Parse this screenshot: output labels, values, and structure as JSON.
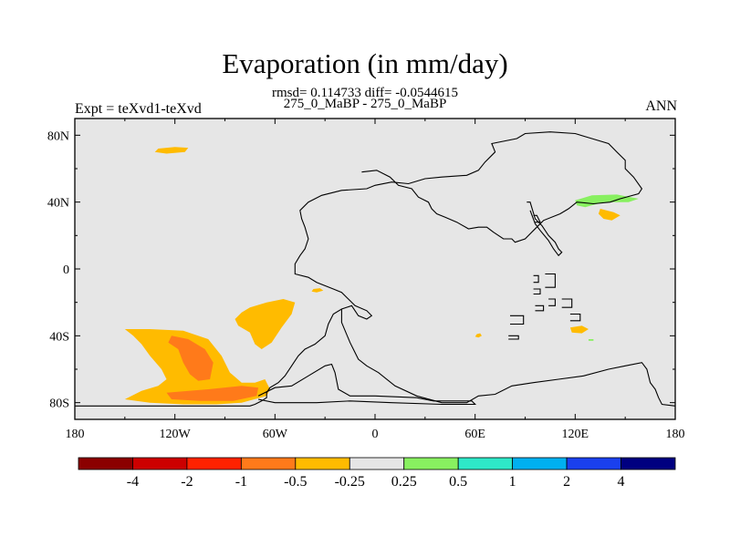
{
  "chart_data": {
    "type": "heatmap",
    "title": "Evaporation (in mm/day)",
    "subtitle": "rmsd= 0.114733 diff= -0.0544615",
    "center_label": "275_0_MaBP - 275_0_MaBP",
    "left_label": "Expt = teXvd1-teXvd",
    "right_label": "ANN",
    "xlim": [
      -180,
      180
    ],
    "ylim": [
      -90,
      90
    ],
    "x_ticks": [
      {
        "value": -180,
        "label": "180"
      },
      {
        "value": -120,
        "label": "120W"
      },
      {
        "value": -60,
        "label": "60W"
      },
      {
        "value": 0,
        "label": "0"
      },
      {
        "value": 60,
        "label": "60E"
      },
      {
        "value": 120,
        "label": "120E"
      },
      {
        "value": 180,
        "label": "180"
      }
    ],
    "y_ticks": [
      {
        "value": 80,
        "label": "80N"
      },
      {
        "value": 40,
        "label": "40N"
      },
      {
        "value": 0,
        "label": "0"
      },
      {
        "value": -40,
        "label": "40S"
      },
      {
        "value": -80,
        "label": "80S"
      }
    ],
    "colorbar": {
      "colors": [
        "#8b0000",
        "#cc0000",
        "#ff2200",
        "#ff7a1a",
        "#ffbb00",
        "#e6e6e6",
        "#88f060",
        "#2ee8c8",
        "#00b0f0",
        "#1a40ee",
        "#000080"
      ],
      "labels": [
        "-4",
        "-2",
        "-1",
        "-0.5",
        "-0.25",
        "0.25",
        "0.5",
        "1",
        "2",
        "4"
      ]
    },
    "field_color": "#e6e6e6",
    "regions": [
      {
        "level": "-0.5",
        "color": "#ffbb00",
        "points": [
          [
            -130,
            72
          ],
          [
            -120,
            73
          ],
          [
            -112,
            72.5
          ],
          [
            -114,
            70
          ],
          [
            -125,
            69
          ],
          [
            -132,
            70
          ]
        ]
      },
      {
        "level": "-0.5",
        "color": "#ffbb00",
        "points": [
          [
            -150,
            -36
          ],
          [
            -135,
            -36
          ],
          [
            -115,
            -37
          ],
          [
            -100,
            -42
          ],
          [
            -92,
            -52
          ],
          [
            -87,
            -62
          ],
          [
            -80,
            -68
          ],
          [
            -72,
            -68
          ],
          [
            -66,
            -66
          ],
          [
            -63,
            -72
          ],
          [
            -65,
            -76
          ],
          [
            -80,
            -80
          ],
          [
            -95,
            -81
          ],
          [
            -115,
            -81
          ],
          [
            -135,
            -80
          ],
          [
            -150,
            -78
          ],
          [
            -140,
            -73
          ],
          [
            -130,
            -70
          ],
          [
            -125,
            -66
          ],
          [
            -128,
            -60
          ],
          [
            -135,
            -52
          ],
          [
            -140,
            -45
          ],
          [
            -145,
            -40
          ]
        ]
      },
      {
        "level": "-0.5",
        "color": "#ffbb00",
        "points": [
          [
            -75,
            -23
          ],
          [
            -65,
            -20
          ],
          [
            -55,
            -18
          ],
          [
            -48,
            -20
          ],
          [
            -50,
            -27
          ],
          [
            -56,
            -35
          ],
          [
            -62,
            -44
          ],
          [
            -68,
            -48
          ],
          [
            -72,
            -45
          ],
          [
            -75,
            -38
          ],
          [
            -82,
            -34
          ],
          [
            -84,
            -30
          ],
          [
            -80,
            -26
          ]
        ]
      },
      {
        "level": "-0.5",
        "color": "#ffbb00",
        "points": [
          [
            -37,
            -12
          ],
          [
            -33,
            -11.5
          ],
          [
            -31,
            -13
          ],
          [
            -35,
            -14
          ],
          [
            -38,
            -13.5
          ]
        ]
      },
      {
        "level": "-1",
        "color": "#ff7a1a",
        "points": [
          [
            -122,
            -40
          ],
          [
            -112,
            -42
          ],
          [
            -102,
            -48
          ],
          [
            -97,
            -56
          ],
          [
            -99,
            -66
          ],
          [
            -106,
            -67
          ],
          [
            -111,
            -63
          ],
          [
            -115,
            -56
          ],
          [
            -118,
            -48
          ],
          [
            -124,
            -44
          ]
        ]
      },
      {
        "level": "-1",
        "color": "#ff7a1a",
        "points": [
          [
            -125,
            -74
          ],
          [
            -100,
            -72
          ],
          [
            -80,
            -70
          ],
          [
            -70,
            -71
          ],
          [
            -71,
            -76
          ],
          [
            -85,
            -79
          ],
          [
            -105,
            -79
          ],
          [
            -122,
            -78
          ]
        ]
      },
      {
        "level": "-0.5",
        "color": "#ffbb00",
        "points": [
          [
            61,
            -39
          ],
          [
            63,
            -38.5
          ],
          [
            64,
            -40
          ],
          [
            62,
            -41
          ],
          [
            60,
            -40.5
          ]
        ]
      },
      {
        "level": "-0.5",
        "color": "#ffbb00",
        "points": [
          [
            117,
            -35
          ],
          [
            124,
            -34
          ],
          [
            128,
            -36
          ],
          [
            124,
            -38.5
          ],
          [
            118,
            -38
          ]
        ]
      },
      {
        "level": "0.25",
        "color": "#88f060",
        "points": [
          [
            128,
            -42
          ],
          [
            131,
            -42
          ],
          [
            131,
            -43
          ],
          [
            128,
            -43
          ]
        ]
      },
      {
        "level": "0.25",
        "color": "#88f060",
        "points": [
          [
            120,
            41
          ],
          [
            130,
            44
          ],
          [
            145,
            44.5
          ],
          [
            158,
            42
          ],
          [
            152,
            40
          ],
          [
            137,
            40
          ],
          [
            126,
            37
          ],
          [
            121,
            38
          ]
        ]
      },
      {
        "level": "-0.5",
        "color": "#ffbb00",
        "points": [
          [
            135,
            36
          ],
          [
            143,
            34
          ],
          [
            147,
            32
          ],
          [
            142,
            29
          ],
          [
            137,
            30
          ],
          [
            134,
            33
          ]
        ]
      }
    ],
    "coastlines": [
      [
        [
          -180,
          -82
        ],
        [
          -100,
          -82
        ],
        [
          -75,
          -82
        ],
        [
          -72,
          -81
        ],
        [
          -68,
          -79
        ],
        [
          -65,
          -77
        ],
        [
          -65,
          -74
        ],
        [
          -63,
          -71
        ],
        [
          -58,
          -68
        ],
        [
          -54,
          -64
        ],
        [
          -50,
          -58
        ],
        [
          -46,
          -52
        ],
        [
          -42,
          -48
        ],
        [
          -36,
          -45
        ],
        [
          -30,
          -40
        ],
        [
          -28,
          -33
        ],
        [
          -25,
          -27
        ],
        [
          -20,
          -24
        ],
        [
          -14,
          -22
        ],
        [
          -10,
          -28
        ],
        [
          -5,
          -30
        ],
        [
          -2,
          -28
        ],
        [
          -5,
          -25
        ],
        [
          -12,
          -22
        ],
        [
          -20,
          -14
        ],
        [
          -25,
          -12
        ],
        [
          -35,
          -8
        ],
        [
          -40,
          -5
        ],
        [
          -48,
          -3
        ],
        [
          -48,
          3
        ],
        [
          -45,
          8
        ],
        [
          -42,
          12
        ],
        [
          -40,
          18
        ],
        [
          -42,
          25
        ],
        [
          -44,
          30
        ],
        [
          -45,
          35
        ],
        [
          -40,
          40
        ],
        [
          -32,
          44
        ],
        [
          -20,
          47
        ],
        [
          -5,
          48
        ],
        [
          0,
          50
        ],
        [
          10,
          52
        ],
        [
          20,
          51
        ],
        [
          30,
          54
        ],
        [
          40,
          55
        ],
        [
          55,
          56
        ],
        [
          62,
          59
        ],
        [
          66,
          64
        ],
        [
          72,
          70
        ],
        [
          70,
          75
        ],
        [
          85,
          78
        ],
        [
          90,
          81
        ],
        [
          105,
          82
        ],
        [
          120,
          81
        ],
        [
          130,
          78
        ],
        [
          140,
          75
        ],
        [
          145,
          70
        ],
        [
          150,
          65
        ],
        [
          150,
          60
        ],
        [
          155,
          55
        ],
        [
          160,
          48
        ],
        [
          158,
          45
        ],
        [
          147,
          42
        ],
        [
          141,
          40
        ],
        [
          131,
          39
        ],
        [
          121,
          40
        ],
        [
          116,
          36
        ],
        [
          111,
          33
        ],
        [
          101,
          29
        ],
        [
          95,
          23
        ],
        [
          90,
          18
        ],
        [
          84,
          16
        ],
        [
          82,
          18
        ],
        [
          77,
          18
        ],
        [
          71,
          22
        ],
        [
          67,
          25
        ],
        [
          62,
          25
        ],
        [
          56,
          24
        ],
        [
          49,
          28
        ],
        [
          42,
          31
        ],
        [
          37,
          33
        ],
        [
          34,
          36
        ],
        [
          32,
          40
        ],
        [
          26,
          43
        ],
        [
          22,
          48
        ],
        [
          14,
          50
        ],
        [
          9,
          55
        ],
        [
          1,
          59
        ],
        [
          -8,
          58
        ]
      ],
      [
        [
          -20,
          -24
        ],
        [
          -20,
          -32
        ],
        [
          -15,
          -44
        ],
        [
          -10,
          -54
        ],
        [
          -5,
          -58
        ],
        [
          2,
          -62
        ],
        [
          12,
          -70
        ],
        [
          25,
          -76
        ],
        [
          40,
          -80
        ],
        [
          55,
          -80
        ],
        [
          62,
          -76
        ],
        [
          72,
          -75
        ],
        [
          82,
          -70
        ],
        [
          95,
          -68
        ],
        [
          110,
          -66
        ],
        [
          125,
          -64
        ],
        [
          140,
          -60
        ],
        [
          150,
          -58
        ],
        [
          160,
          -56
        ],
        [
          163,
          -60
        ],
        [
          165,
          -68
        ],
        [
          168,
          -72
        ],
        [
          170,
          -77
        ],
        [
          172,
          -81
        ],
        [
          180,
          -82
        ]
      ],
      [
        [
          -70,
          -76
        ],
        [
          -60,
          -71
        ],
        [
          -50,
          -70
        ],
        [
          -40,
          -64
        ],
        [
          -30,
          -58
        ],
        [
          -26,
          -57
        ],
        [
          -24,
          -62
        ],
        [
          -22,
          -72
        ],
        [
          -15,
          -76
        ],
        [
          0,
          -76
        ],
        [
          25,
          -77
        ],
        [
          35,
          -79
        ],
        [
          58,
          -79
        ],
        [
          60,
          -81
        ],
        [
          40,
          -81
        ],
        [
          10,
          -80
        ],
        [
          -15,
          -79
        ],
        [
          -35,
          -80
        ],
        [
          -60,
          -80
        ],
        [
          -70,
          -78
        ]
      ],
      [
        [
          81,
          -28
        ],
        [
          89,
          -28
        ],
        [
          89,
          -33
        ],
        [
          81,
          -33
        ]
      ],
      [
        [
          95,
          -4
        ],
        [
          98,
          -4
        ],
        [
          98,
          -8
        ],
        [
          95,
          -8
        ]
      ],
      [
        [
          95,
          -12
        ],
        [
          99,
          -12
        ],
        [
          99,
          -15
        ],
        [
          95,
          -15
        ]
      ],
      [
        [
          102,
          -3
        ],
        [
          108,
          -3
        ],
        [
          108,
          -11
        ],
        [
          102,
          -11
        ]
      ],
      [
        [
          104,
          -18
        ],
        [
          108,
          -18
        ],
        [
          108,
          -22
        ],
        [
          104,
          -22
        ]
      ],
      [
        [
          112,
          -18
        ],
        [
          118,
          -18
        ],
        [
          118,
          -23
        ],
        [
          112,
          -23
        ]
      ],
      [
        [
          117,
          -27
        ],
        [
          123,
          -27
        ],
        [
          123,
          -31
        ],
        [
          117,
          -31
        ]
      ],
      [
        [
          96,
          -22
        ],
        [
          101,
          -22
        ],
        [
          101,
          -25
        ],
        [
          96,
          -25
        ]
      ],
      [
        [
          91,
          40
        ],
        [
          93,
          40
        ],
        [
          96,
          30
        ],
        [
          100,
          26
        ],
        [
          104,
          20
        ],
        [
          108,
          16
        ],
        [
          110,
          12
        ],
        [
          112,
          10
        ],
        [
          110,
          8
        ],
        [
          107,
          12
        ],
        [
          104,
          17
        ],
        [
          99,
          23
        ],
        [
          96,
          27
        ],
        [
          93,
          35
        ]
      ],
      [
        [
          95,
          32
        ],
        [
          97,
          32
        ],
        [
          99,
          28
        ],
        [
          96,
          28
        ]
      ],
      [
        [
          80,
          -40
        ],
        [
          86,
          -40
        ],
        [
          86,
          -42
        ],
        [
          80,
          -42
        ]
      ]
    ]
  }
}
